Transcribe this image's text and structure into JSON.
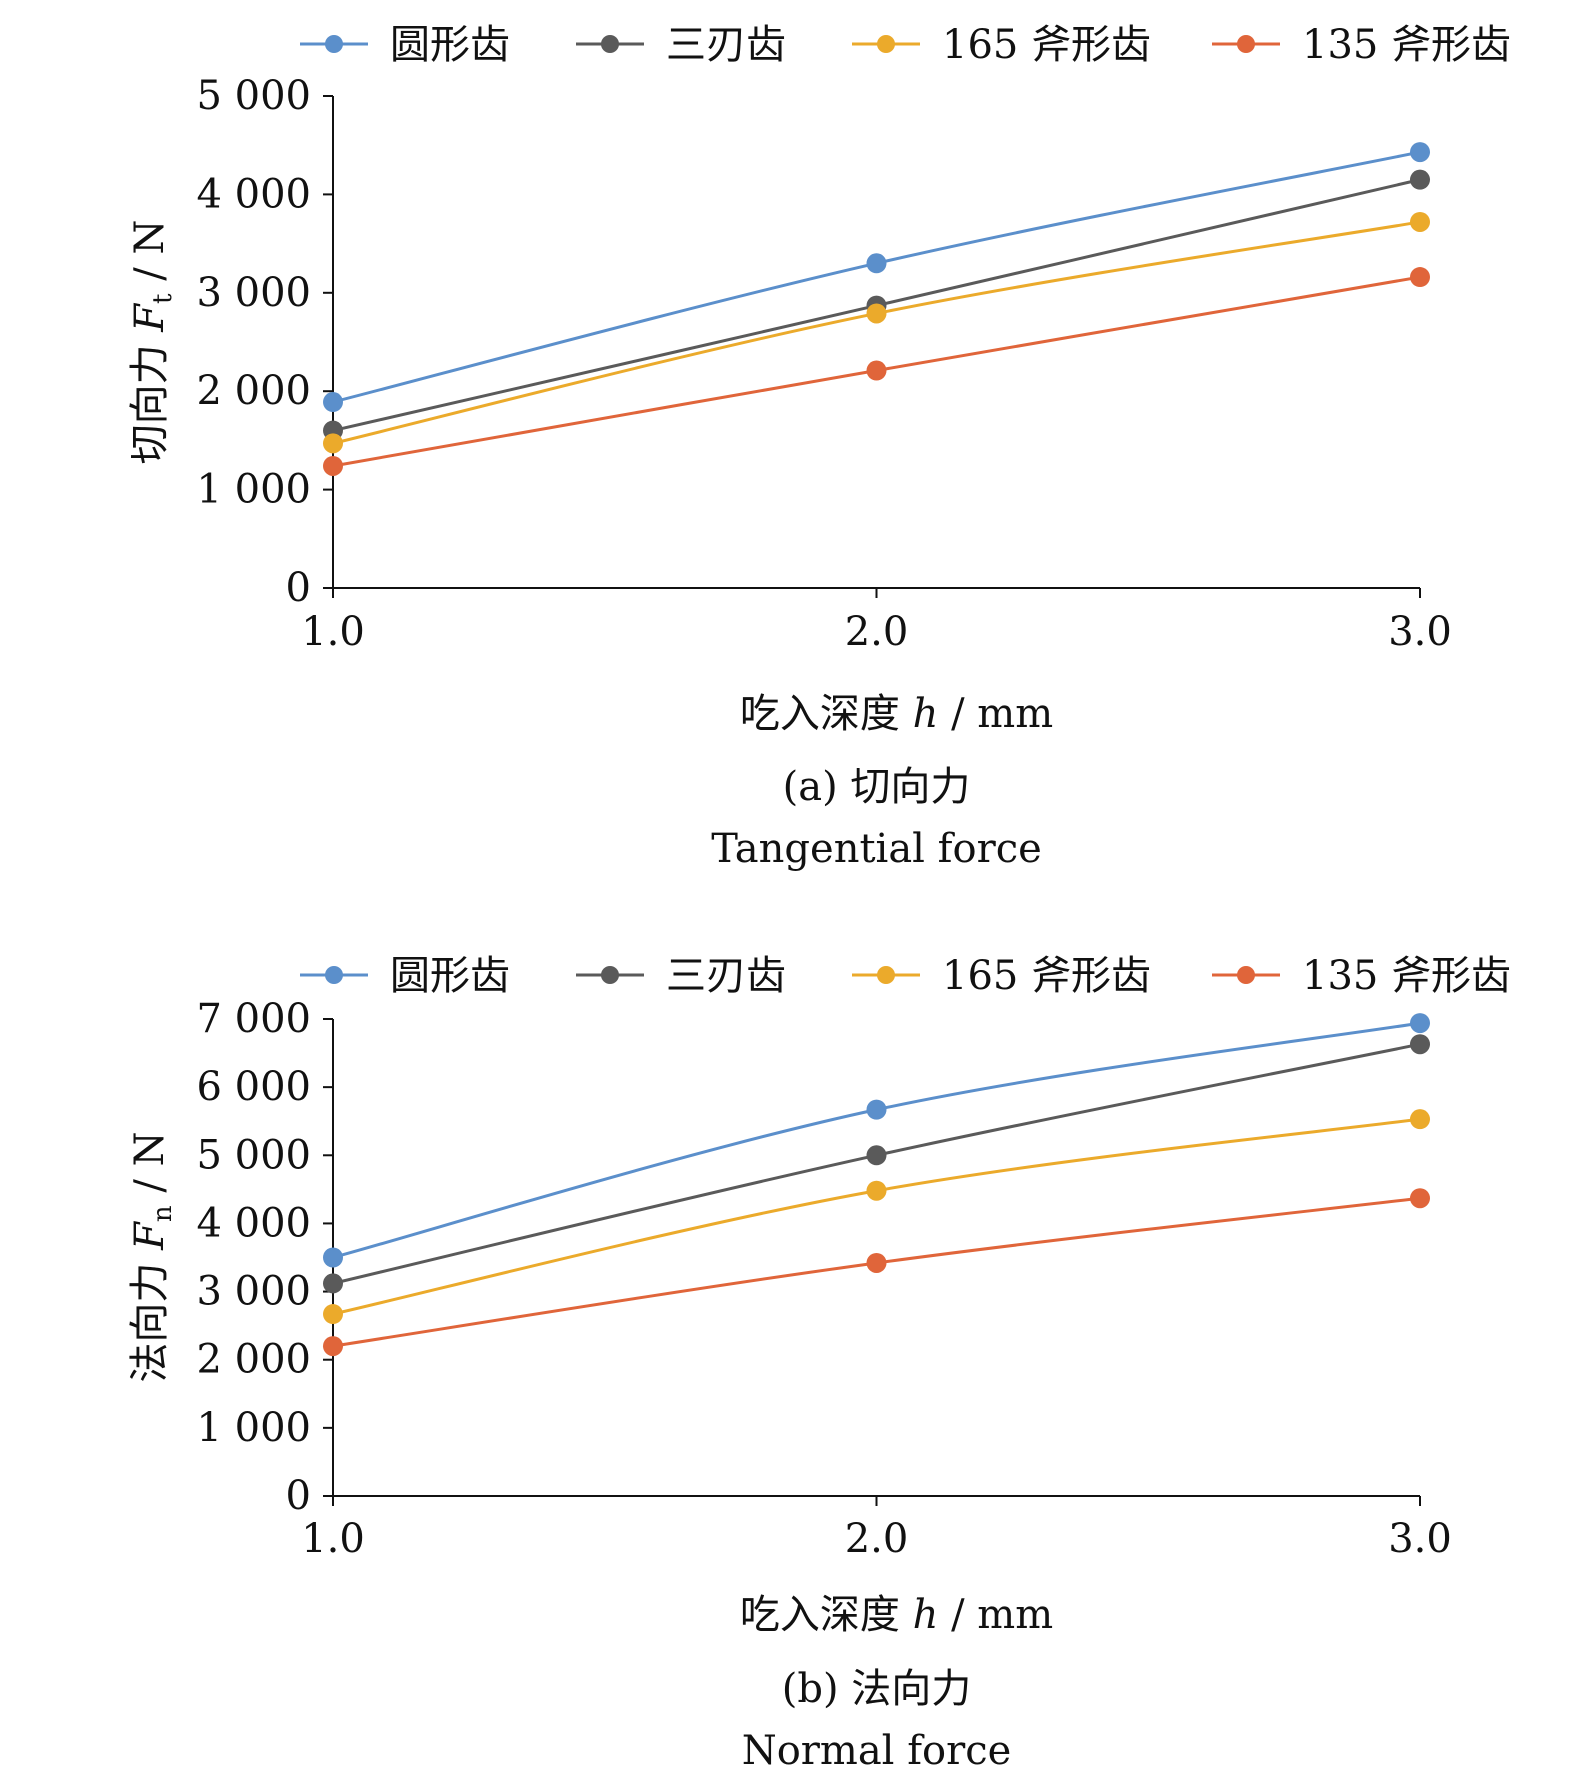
{
  "colors": {
    "blue": "#5B8FCB",
    "gray": "#5A5A5A",
    "yellow": "#EBAA2B",
    "orange": "#E0653A",
    "axis": "#111111"
  },
  "chart_data": [
    {
      "type": "line",
      "caption_line1": "(a) 切向力",
      "caption_line2": "Tangential force",
      "xlabel_prefix": "吃入深度 ",
      "xlabel_var": "h",
      "xlabel_suffix": " / mm",
      "ylabel_prefix": "切向力 ",
      "ylabel_var": "F",
      "ylabel_sub": "t",
      "ylabel_suffix": " / N",
      "x": [
        1.0,
        2.0,
        3.0
      ],
      "xticks": [
        "1.0",
        "2.0",
        "3.0"
      ],
      "ylim": [
        0,
        5000
      ],
      "yticks": [
        "0",
        "1 000",
        "2 000",
        "3 000",
        "4 000",
        "5 000"
      ],
      "legend_position": "top",
      "series": [
        {
          "name": "圆形齿",
          "color": "#5B8FCB",
          "values": [
            1890,
            3300,
            4430
          ]
        },
        {
          "name": "三刃齿",
          "color": "#5A5A5A",
          "values": [
            1600,
            2870,
            4150
          ]
        },
        {
          "name": "165 斧形齿",
          "color": "#EBAA2B",
          "values": [
            1470,
            2790,
            3720
          ]
        },
        {
          "name": "135 斧形齿",
          "color": "#E0653A",
          "values": [
            1240,
            2210,
            3160
          ]
        }
      ]
    },
    {
      "type": "line",
      "caption_line1": "(b) 法向力",
      "caption_line2": "Normal force",
      "xlabel_prefix": "吃入深度 ",
      "xlabel_var": "h",
      "xlabel_suffix": " / mm",
      "ylabel_prefix": "法向力 ",
      "ylabel_var": "F",
      "ylabel_sub": "n",
      "ylabel_suffix": " / N",
      "x": [
        1.0,
        2.0,
        3.0
      ],
      "xticks": [
        "1.0",
        "2.0",
        "3.0"
      ],
      "ylim": [
        0,
        7000
      ],
      "yticks": [
        "0",
        "1 000",
        "2 000",
        "3 000",
        "4 000",
        "5 000",
        "6 000",
        "7 000"
      ],
      "legend_position": "top",
      "series": [
        {
          "name": "圆形齿",
          "color": "#5B8FCB",
          "values": [
            3500,
            5670,
            6940
          ]
        },
        {
          "name": "三刃齿",
          "color": "#5A5A5A",
          "values": [
            3120,
            5000,
            6630
          ]
        },
        {
          "name": "165 斧形齿",
          "color": "#EBAA2B",
          "values": [
            2670,
            4480,
            5530
          ]
        },
        {
          "name": "135 斧形齿",
          "color": "#E0653A",
          "values": [
            2200,
            3420,
            4370
          ]
        }
      ]
    }
  ]
}
